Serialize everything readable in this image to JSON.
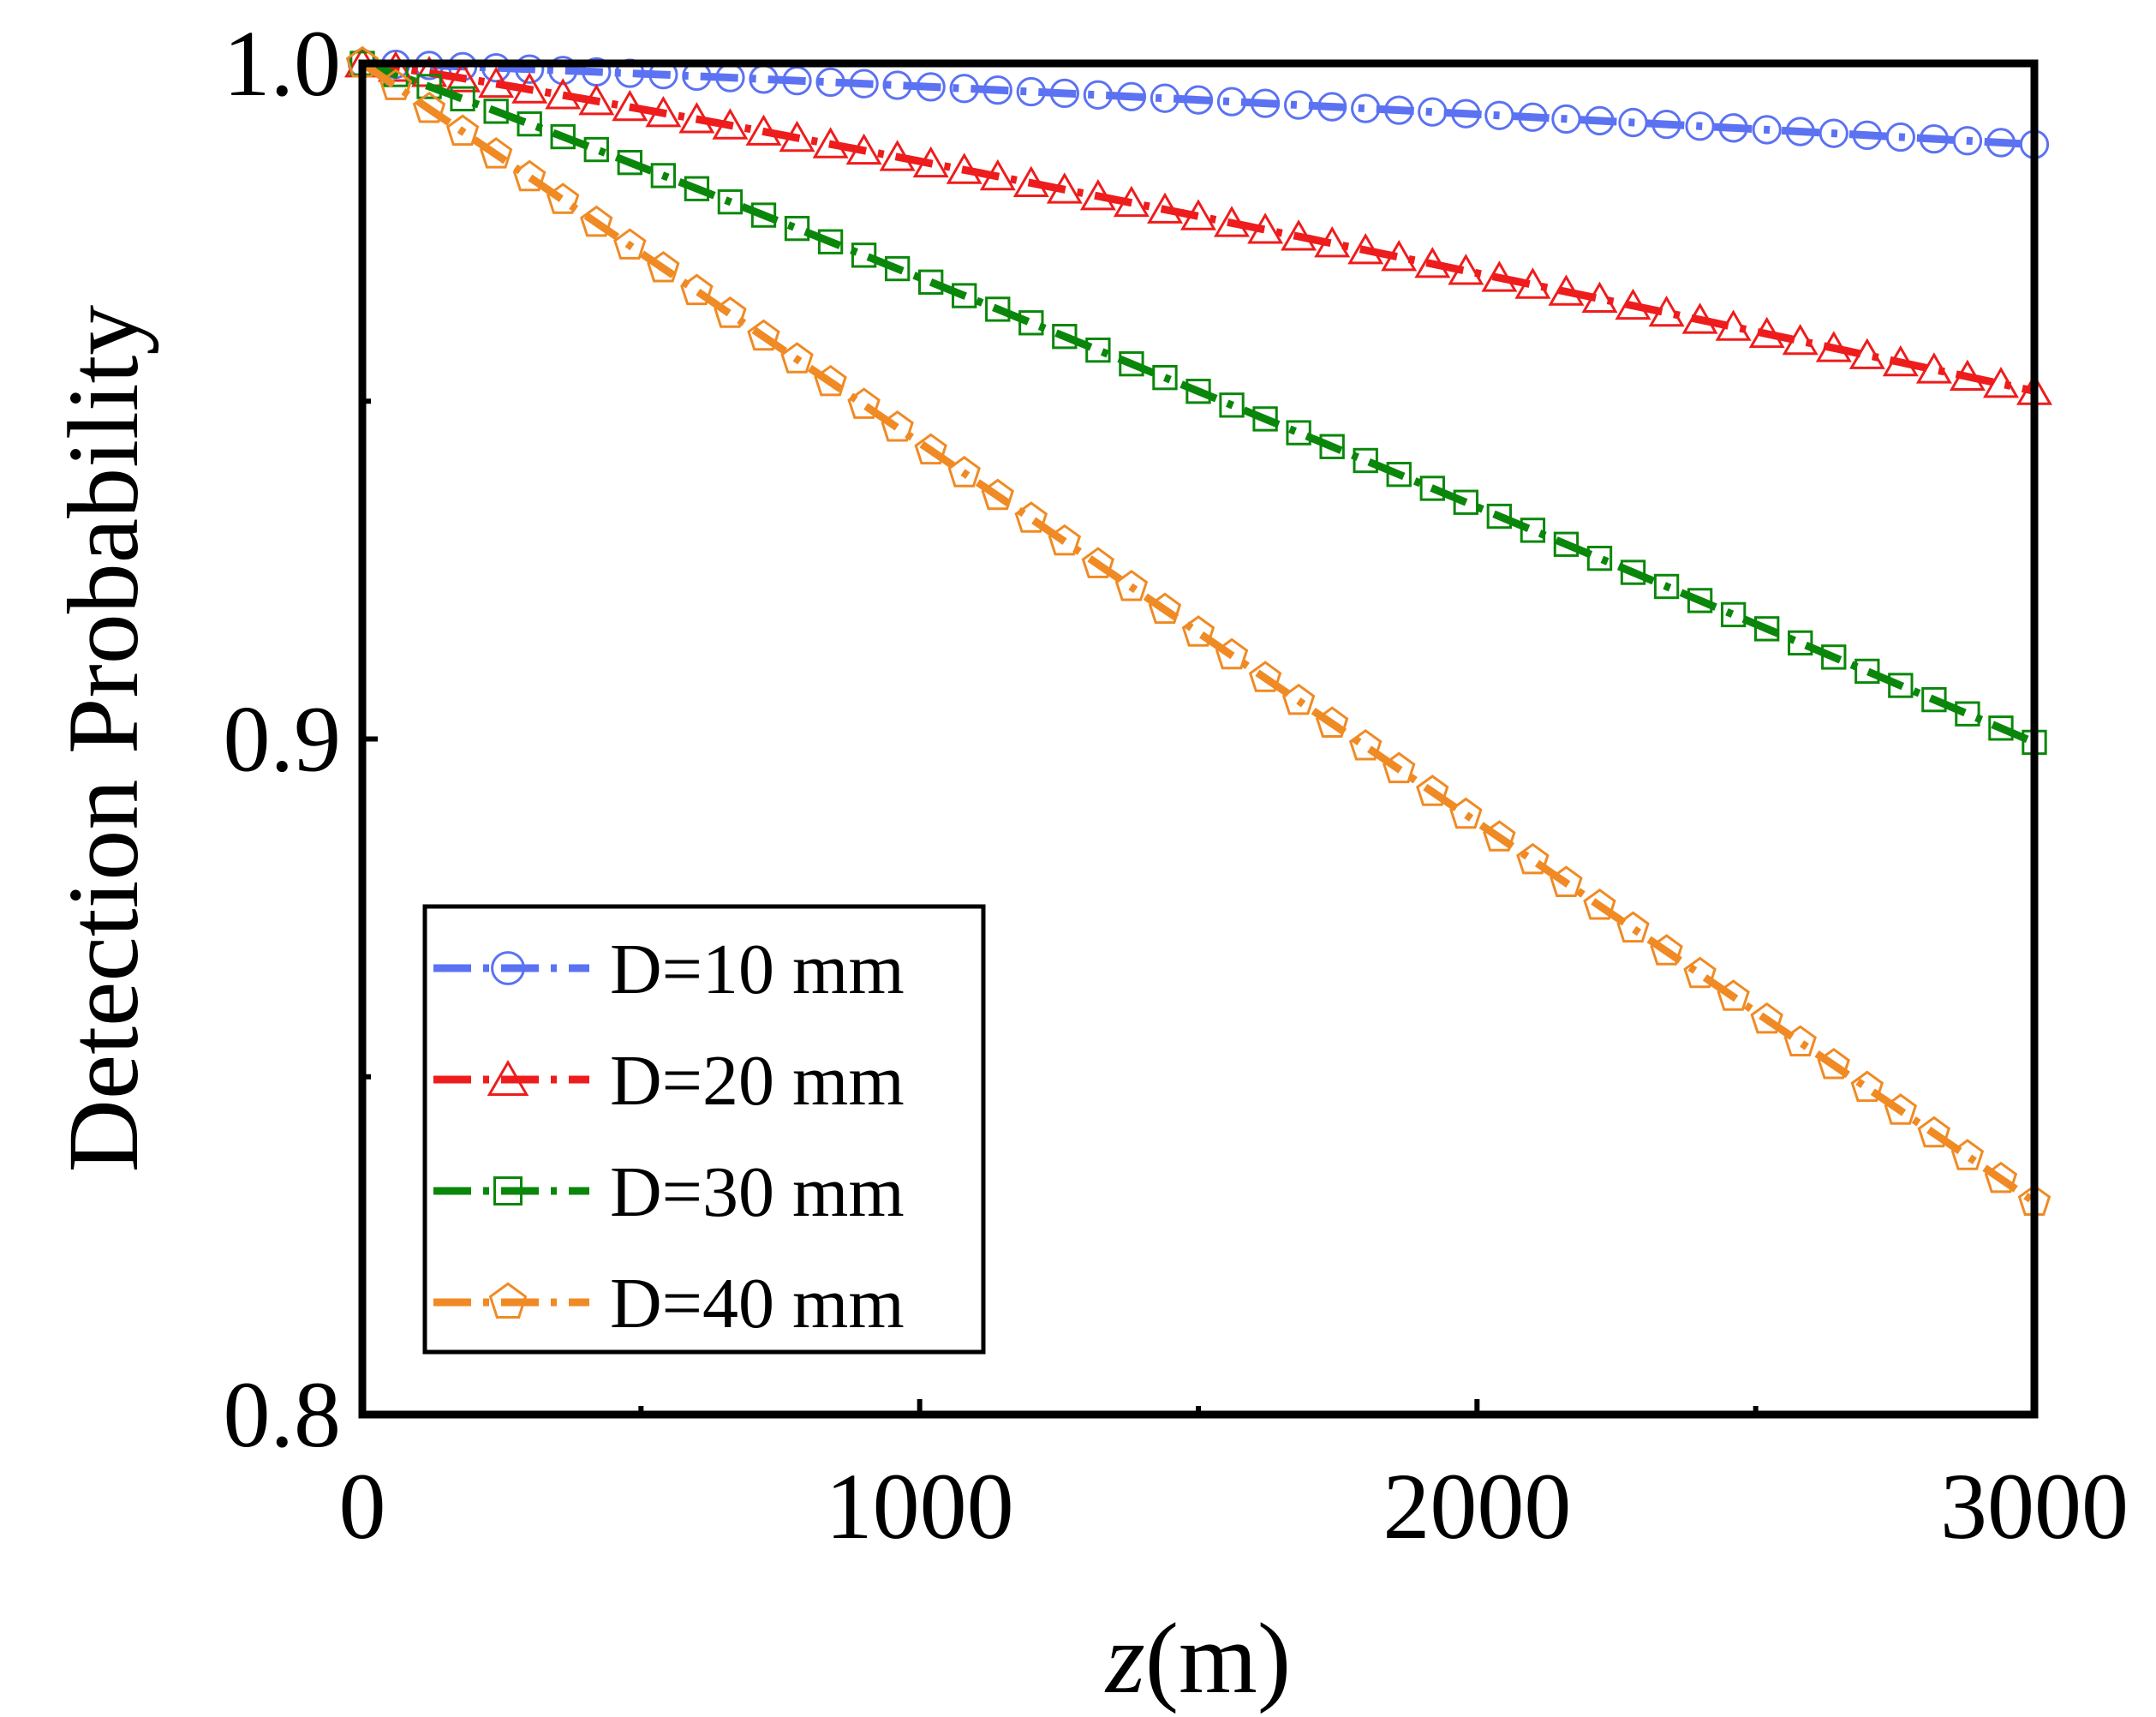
{
  "chart_data": {
    "type": "line",
    "title": "",
    "xlabel_italic": "z",
    "xlabel_rest": "(m)",
    "ylabel": "Detection Probability",
    "xlim": [
      0,
      3000
    ],
    "ylim": [
      0.8,
      1.0
    ],
    "x_ticks": [
      0,
      1000,
      2000,
      3000
    ],
    "x_tick_labels": [
      "0",
      "1000",
      "2000",
      "3000"
    ],
    "x_minor_ticks": [
      500,
      1500,
      2500
    ],
    "y_ticks": [
      0.8,
      0.9,
      1.0
    ],
    "y_tick_labels": [
      "0.8",
      "0.9",
      "1.0"
    ],
    "y_minor_ticks": [
      0.85,
      0.95
    ],
    "grid": false,
    "legend_position": "lower-left",
    "series": [
      {
        "name": "D=10 mm",
        "label": "D=10 mm",
        "color": "#5b72f2",
        "marker": "circle",
        "x": [
          0,
          3000
        ],
        "y": [
          1.0,
          0.988
        ],
        "curve": 1.15
      },
      {
        "name": "D=20 mm",
        "label": "D=20 mm",
        "color": "#ee1c1c",
        "marker": "triangle",
        "x": [
          0,
          3000
        ],
        "y": [
          1.0,
          0.9515
        ],
        "curve": 1.1
      },
      {
        "name": "D=30 mm",
        "label": "D=30 mm",
        "color": "#0a870a",
        "marker": "square",
        "x": [
          0,
          3000
        ],
        "y": [
          1.0,
          0.8995
        ],
        "curve": 1.05
      },
      {
        "name": "D=40 mm",
        "label": "D=40 mm",
        "color": "#f08a24",
        "marker": "pentagon",
        "x": [
          0,
          3000
        ],
        "y": [
          1.0,
          0.8315
        ],
        "curve": 1.0
      }
    ]
  }
}
